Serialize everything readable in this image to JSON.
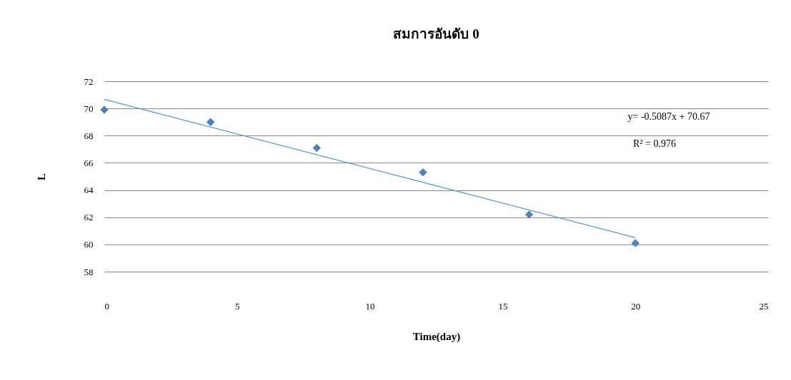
{
  "chart_data": {
    "type": "scatter",
    "title": "สมการอันดับ 0",
    "xlabel": "Time(day)",
    "ylabel": "L",
    "x": [
      0,
      4,
      8,
      12,
      16,
      20
    ],
    "series": [
      {
        "color": "#4f81bd",
        "values": [
          69.9,
          69.0,
          67.1,
          65.3,
          62.2,
          60.1
        ],
        "marker": "diamond"
      },
      {
        "type": "line",
        "color": "#4a9bd6",
        "x": [
          0,
          20
        ],
        "values": [
          70.67,
          60.5
        ],
        "marker": "none",
        "line_style": "solid"
      }
    ],
    "xlim": [
      0,
      25
    ],
    "xticks": [
      0,
      5,
      10,
      15,
      20,
      25
    ],
    "ylim": [
      58,
      72
    ],
    "yticks": [
      58,
      60,
      62,
      64,
      66,
      68,
      70,
      72
    ],
    "grid": "y",
    "annotations": [
      "y= -0.5087x + 70.67",
      "R² = 0.976"
    ]
  }
}
